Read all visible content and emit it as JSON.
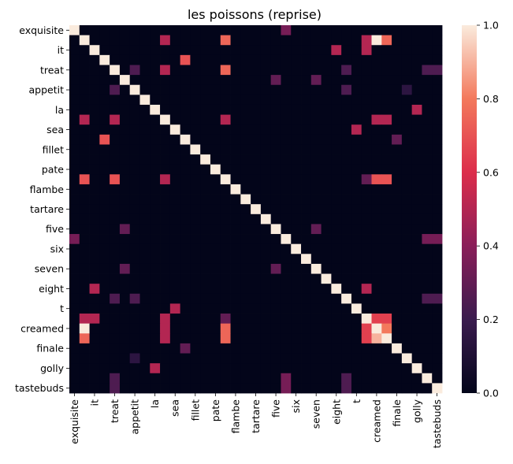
{
  "chart_data": {
    "type": "heatmap",
    "title": "les poissons (reprise)",
    "xlabel": "",
    "ylabel": "",
    "row_count": 37,
    "col_count": 37,
    "row_labels": [
      "exquisite",
      "",
      "it",
      "",
      "treat",
      "",
      "appetit",
      "",
      "la",
      "",
      "sea",
      "",
      "fillet",
      "",
      "pate",
      "",
      "flambe",
      "",
      "tartare",
      "",
      "five",
      "",
      "six",
      "",
      "seven",
      "",
      "eight",
      "",
      "t",
      "",
      "creamed",
      "",
      "finale",
      "",
      "golly",
      "",
      "tastebuds"
    ],
    "col_labels": [
      "exquisite",
      "",
      "it",
      "",
      "treat",
      "",
      "appetit",
      "",
      "la",
      "",
      "sea",
      "",
      "fillet",
      "",
      "pate",
      "",
      "flambe",
      "",
      "tartare",
      "",
      "five",
      "",
      "six",
      "",
      "seven",
      "",
      "eight",
      "",
      "t",
      "",
      "creamed",
      "",
      "finale",
      "",
      "golly",
      "",
      "tastebuds"
    ],
    "colorbar": {
      "min": 0.0,
      "max": 1.0,
      "ticks": [
        "0.0",
        "0.2",
        "0.4",
        "0.6",
        "0.8",
        "1.0"
      ]
    },
    "diagonal_value": 1.0,
    "default_value": 0.0,
    "offdiagonal_cells": [
      {
        "r": 0,
        "c": 21,
        "v": 0.35
      },
      {
        "r": 1,
        "c": 9,
        "v": 0.5
      },
      {
        "r": 1,
        "c": 15,
        "v": 0.75
      },
      {
        "r": 1,
        "c": 29,
        "v": 0.5
      },
      {
        "r": 1,
        "c": 30,
        "v": 1.0
      },
      {
        "r": 1,
        "c": 31,
        "v": 0.75
      },
      {
        "r": 2,
        "c": 26,
        "v": 0.5
      },
      {
        "r": 2,
        "c": 29,
        "v": 0.5
      },
      {
        "r": 3,
        "c": 11,
        "v": 0.7
      },
      {
        "r": 4,
        "c": 6,
        "v": 0.25
      },
      {
        "r": 4,
        "c": 9,
        "v": 0.5
      },
      {
        "r": 4,
        "c": 15,
        "v": 0.75
      },
      {
        "r": 4,
        "c": 27,
        "v": 0.25
      },
      {
        "r": 4,
        "c": 35,
        "v": 0.25
      },
      {
        "r": 4,
        "c": 36,
        "v": 0.25
      },
      {
        "r": 5,
        "c": 20,
        "v": 0.3
      },
      {
        "r": 5,
        "c": 24,
        "v": 0.3
      },
      {
        "r": 6,
        "c": 4,
        "v": 0.25
      },
      {
        "r": 6,
        "c": 27,
        "v": 0.25
      },
      {
        "r": 6,
        "c": 33,
        "v": 0.15
      },
      {
        "r": 8,
        "c": 34,
        "v": 0.5
      },
      {
        "r": 9,
        "c": 1,
        "v": 0.5
      },
      {
        "r": 9,
        "c": 4,
        "v": 0.5
      },
      {
        "r": 9,
        "c": 15,
        "v": 0.5
      },
      {
        "r": 9,
        "c": 30,
        "v": 0.5
      },
      {
        "r": 9,
        "c": 31,
        "v": 0.5
      },
      {
        "r": 10,
        "c": 28,
        "v": 0.5
      },
      {
        "r": 11,
        "c": 3,
        "v": 0.7
      },
      {
        "r": 11,
        "c": 32,
        "v": 0.3
      },
      {
        "r": 15,
        "c": 1,
        "v": 0.7
      },
      {
        "r": 15,
        "c": 4,
        "v": 0.7
      },
      {
        "r": 15,
        "c": 9,
        "v": 0.5
      },
      {
        "r": 15,
        "c": 29,
        "v": 0.3
      },
      {
        "r": 15,
        "c": 30,
        "v": 0.7
      },
      {
        "r": 15,
        "c": 31,
        "v": 0.7
      },
      {
        "r": 20,
        "c": 5,
        "v": 0.3
      },
      {
        "r": 20,
        "c": 24,
        "v": 0.3
      },
      {
        "r": 21,
        "c": 0,
        "v": 0.35
      },
      {
        "r": 21,
        "c": 35,
        "v": 0.35
      },
      {
        "r": 21,
        "c": 36,
        "v": 0.35
      },
      {
        "r": 24,
        "c": 5,
        "v": 0.3
      },
      {
        "r": 24,
        "c": 20,
        "v": 0.3
      },
      {
        "r": 26,
        "c": 2,
        "v": 0.5
      },
      {
        "r": 26,
        "c": 29,
        "v": 0.5
      },
      {
        "r": 27,
        "c": 4,
        "v": 0.25
      },
      {
        "r": 27,
        "c": 6,
        "v": 0.25
      },
      {
        "r": 27,
        "c": 35,
        "v": 0.25
      },
      {
        "r": 27,
        "c": 36,
        "v": 0.25
      },
      {
        "r": 28,
        "c": 10,
        "v": 0.5
      },
      {
        "r": 29,
        "c": 1,
        "v": 0.5
      },
      {
        "r": 29,
        "c": 2,
        "v": 0.5
      },
      {
        "r": 29,
        "c": 9,
        "v": 0.5
      },
      {
        "r": 29,
        "c": 15,
        "v": 0.3
      },
      {
        "r": 29,
        "c": 30,
        "v": 0.65
      },
      {
        "r": 29,
        "c": 31,
        "v": 0.65
      },
      {
        "r": 30,
        "c": 1,
        "v": 1.0
      },
      {
        "r": 30,
        "c": 9,
        "v": 0.5
      },
      {
        "r": 30,
        "c": 15,
        "v": 0.75
      },
      {
        "r": 30,
        "c": 29,
        "v": 0.65
      },
      {
        "r": 30,
        "c": 31,
        "v": 0.8
      },
      {
        "r": 31,
        "c": 1,
        "v": 0.75
      },
      {
        "r": 31,
        "c": 9,
        "v": 0.5
      },
      {
        "r": 31,
        "c": 15,
        "v": 0.75
      },
      {
        "r": 31,
        "c": 29,
        "v": 0.65
      },
      {
        "r": 31,
        "c": 30,
        "v": 0.9
      },
      {
        "r": 32,
        "c": 11,
        "v": 0.3
      },
      {
        "r": 33,
        "c": 6,
        "v": 0.15
      },
      {
        "r": 34,
        "c": 8,
        "v": 0.5
      },
      {
        "r": 35,
        "c": 4,
        "v": 0.25
      },
      {
        "r": 35,
        "c": 21,
        "v": 0.35
      },
      {
        "r": 35,
        "c": 27,
        "v": 0.25
      },
      {
        "r": 36,
        "c": 4,
        "v": 0.25
      },
      {
        "r": 36,
        "c": 21,
        "v": 0.35
      },
      {
        "r": 36,
        "c": 27,
        "v": 0.25
      }
    ]
  }
}
